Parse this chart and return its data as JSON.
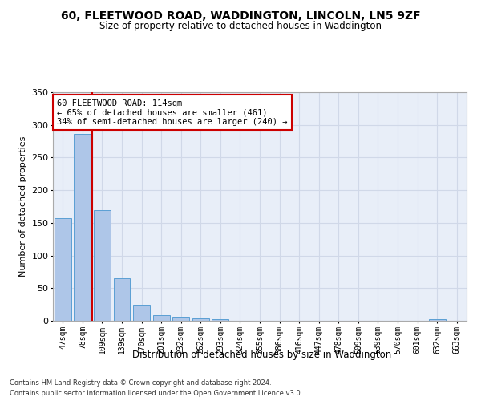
{
  "title1": "60, FLEETWOOD ROAD, WADDINGTON, LINCOLN, LN5 9ZF",
  "title2": "Size of property relative to detached houses in Waddington",
  "xlabel": "Distribution of detached houses by size in Waddington",
  "ylabel": "Number of detached properties",
  "footnote1": "Contains HM Land Registry data © Crown copyright and database right 2024.",
  "footnote2": "Contains public sector information licensed under the Open Government Licence v3.0.",
  "bin_labels": [
    "47sqm",
    "78sqm",
    "109sqm",
    "139sqm",
    "170sqm",
    "201sqm",
    "232sqm",
    "262sqm",
    "293sqm",
    "324sqm",
    "355sqm",
    "386sqm",
    "416sqm",
    "447sqm",
    "478sqm",
    "509sqm",
    "539sqm",
    "570sqm",
    "601sqm",
    "632sqm",
    "663sqm"
  ],
  "bar_values": [
    157,
    286,
    170,
    65,
    25,
    9,
    6,
    4,
    3,
    0,
    0,
    0,
    0,
    0,
    0,
    0,
    0,
    0,
    0,
    3,
    0
  ],
  "bar_color": "#aec6e8",
  "bar_edge_color": "#5a9fd4",
  "annotation_title": "60 FLEETWOOD ROAD: 114sqm",
  "annotation_line2": "← 65% of detached houses are smaller (461)",
  "annotation_line3": "34% of semi-detached houses are larger (240) →",
  "annotation_box_color": "#ffffff",
  "annotation_border_color": "#cc0000",
  "red_line_color": "#cc0000",
  "grid_color": "#d0d8e8",
  "background_color": "#e8eef8",
  "ylim": [
    0,
    350
  ],
  "yticks": [
    0,
    50,
    100,
    150,
    200,
    250,
    300,
    350
  ]
}
